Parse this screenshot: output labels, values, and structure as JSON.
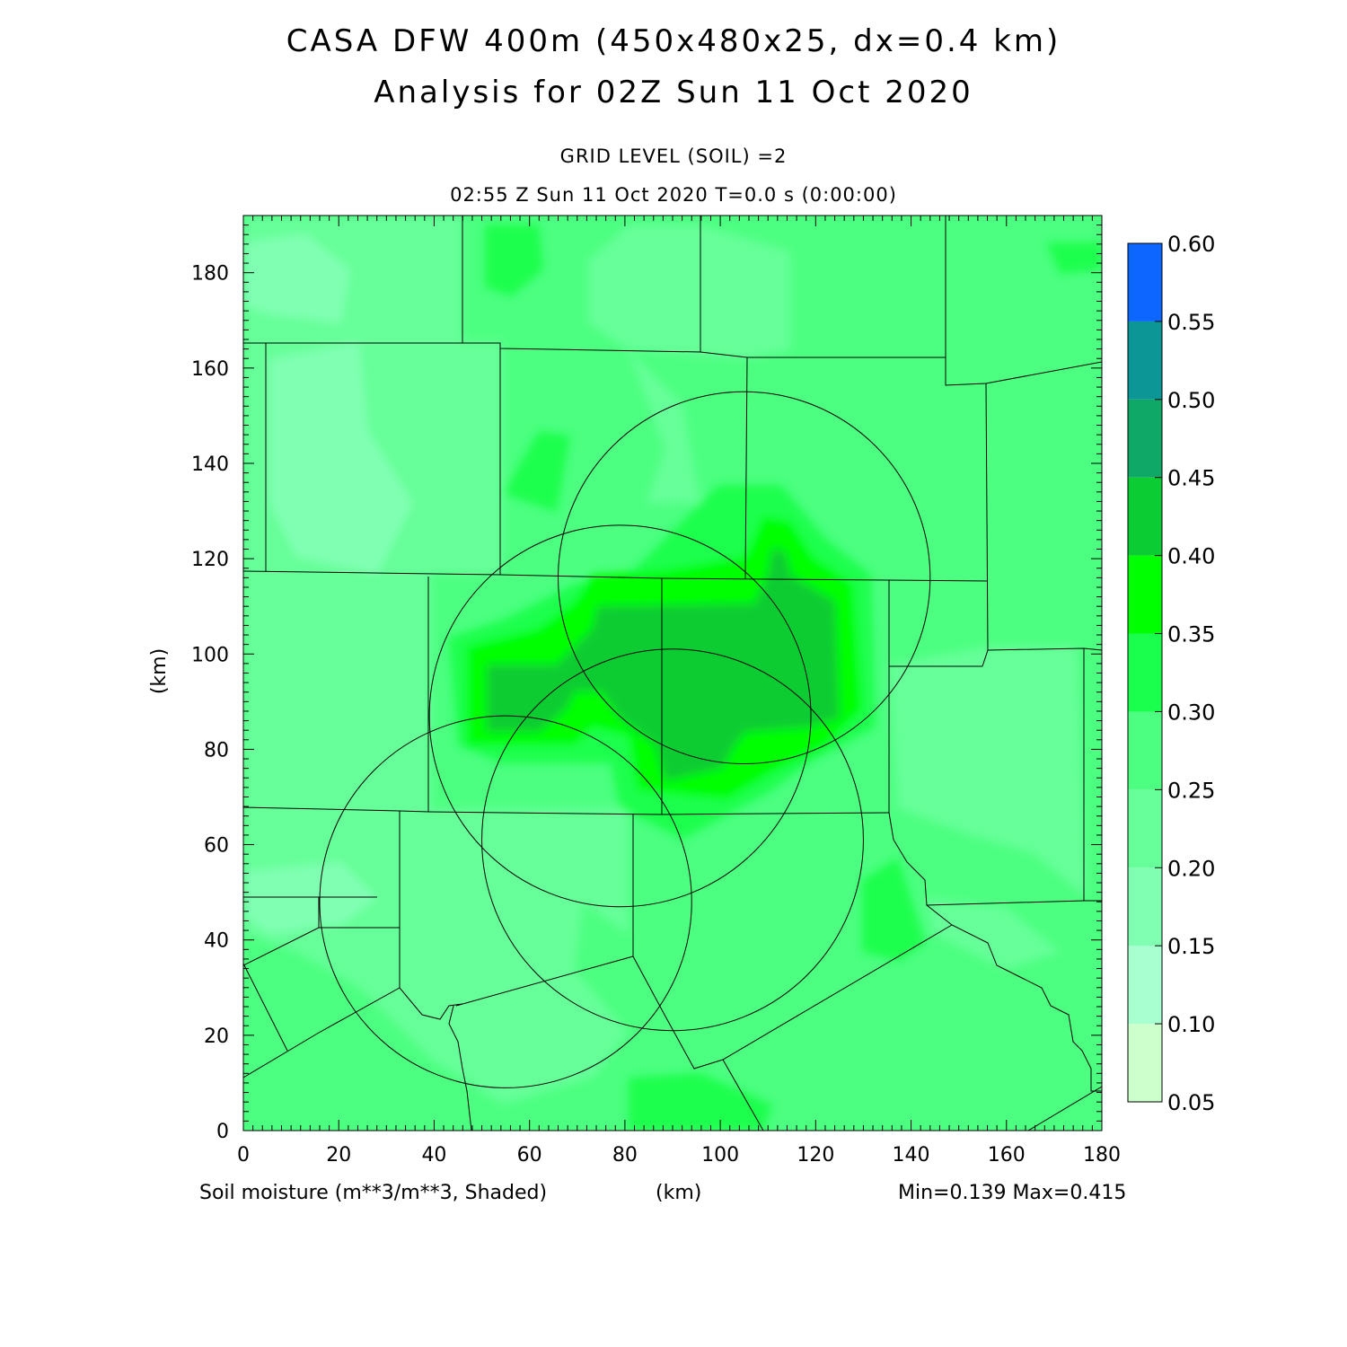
{
  "title": {
    "line1": "CASA DFW 400m (450x480x25, dx=0.4 km)",
    "line2": "Analysis for 02Z Sun 11 Oct 2020"
  },
  "subtitle": {
    "line1": "GRID LEVEL (SOIL) =2",
    "line2": "02:55 Z Sun 11 Oct 2020    T=0.0 s (0:00:00)"
  },
  "footer": {
    "variable": "Soil moisture (m**3/m**3, Shaded)",
    "xunit": "(km)",
    "stats": "Min=0.139 Max=0.415"
  },
  "axes": {
    "ylabel": "(km)",
    "x_ticks": [
      0,
      20,
      40,
      60,
      80,
      100,
      120,
      140,
      160,
      180
    ],
    "y_ticks": [
      0,
      20,
      40,
      60,
      80,
      100,
      120,
      140,
      160,
      180
    ],
    "x_range": [
      0,
      180
    ],
    "y_range": [
      0,
      192
    ]
  },
  "colorbar": {
    "levels": [
      "0.05",
      "0.10",
      "0.15",
      "0.20",
      "0.25",
      "0.30",
      "0.35",
      "0.40",
      "0.45",
      "0.50",
      "0.55",
      "0.60"
    ],
    "colors": [
      "#ccffcc",
      "#a8ffcf",
      "#80ffb2",
      "#66ff99",
      "#4cff80",
      "#1aff4d",
      "#00ff00",
      "#0ccc33",
      "#0fa866",
      "#0d9696",
      "#0d66ff"
    ]
  },
  "map": {
    "background_color": "#4cff80",
    "radar_rings": [
      {
        "cx": 105,
        "cy": 116,
        "r": 39
      },
      {
        "cx": 79,
        "cy": 87,
        "r": 40
      },
      {
        "cx": 90,
        "cy": 61,
        "r": 40
      },
      {
        "cx": 55,
        "cy": 48,
        "r": 39
      }
    ]
  }
}
